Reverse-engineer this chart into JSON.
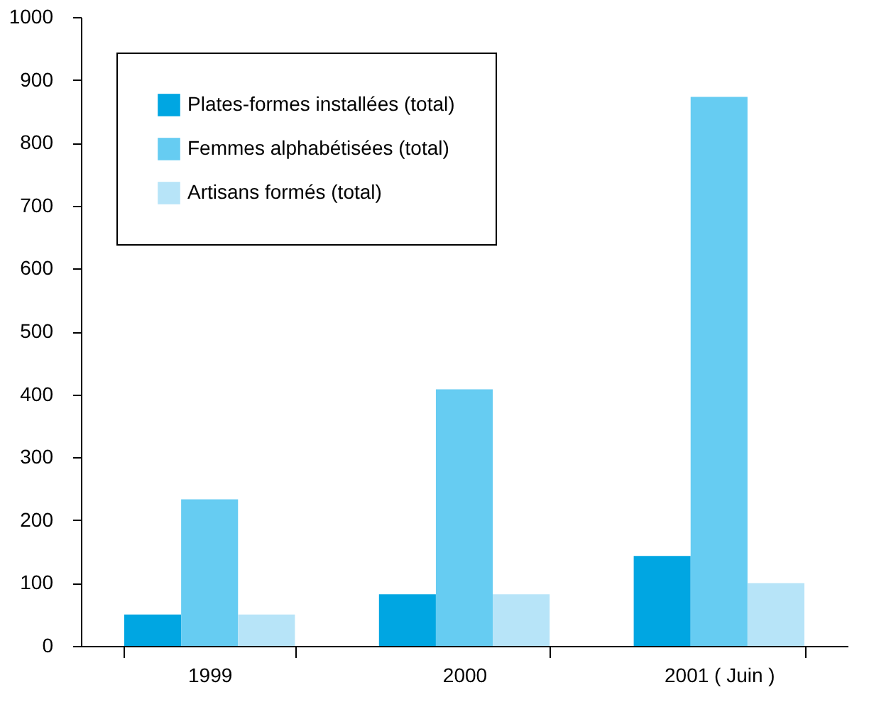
{
  "chart_data": {
    "type": "bar",
    "categories": [
      "1999",
      "2000",
      "2001 ( Juin )"
    ],
    "series": [
      {
        "name": "Plates-formes installées (total)",
        "color": "#00a6e2",
        "values": [
          50,
          82,
          143
        ]
      },
      {
        "name": "Femmes alphabétisées (total)",
        "color": "#66ccf2",
        "values": [
          233,
          408,
          873
        ]
      },
      {
        "name": "Artisans formés (total)",
        "color": "#b7e4f8",
        "values": [
          50,
          82,
          100
        ]
      }
    ],
    "ylim": [
      0,
      1000
    ],
    "yticks": [
      0,
      100,
      200,
      300,
      400,
      500,
      600,
      700,
      800,
      900,
      1000
    ],
    "grid": false,
    "legend": "top left"
  }
}
